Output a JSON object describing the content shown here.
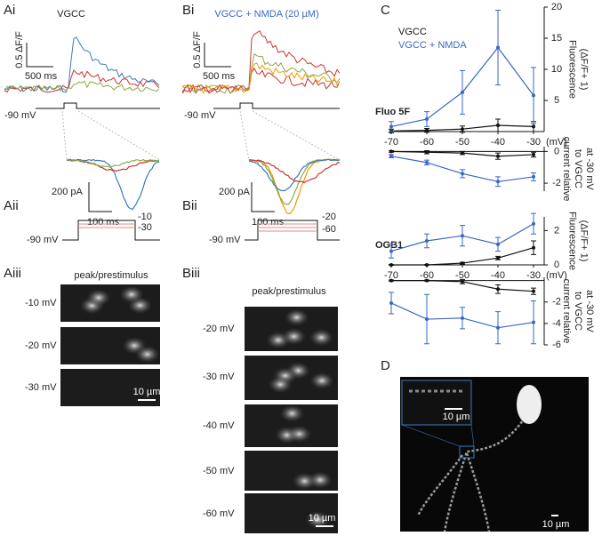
{
  "panel_a": {
    "label_i": "Ai",
    "title": "VGCC",
    "scale_y": "0.5 ΔF/F",
    "scale_x": "500 ms",
    "holding": "-90 mV",
    "label_ii": "Aii",
    "current_scale": "200 pA",
    "time_scale": "100 ms",
    "steps": [
      "-10",
      "-30"
    ],
    "holding_ii": "-90 mV",
    "label_iii": "Aiii",
    "image_title": "peak/prestimulus",
    "image_labels": [
      "-10 mV",
      "-20 mV",
      "-30 mV"
    ],
    "scale_bar": "10 µm"
  },
  "panel_b": {
    "label_i": "Bi",
    "title": "VGCC + NMDA (20 µM)",
    "scale_y": "0.5 ΔF/F",
    "scale_x": "500 ms",
    "holding": "-90 mV",
    "label_ii": "Bii",
    "current_scale": "200 pA",
    "time_scale": "100 ms",
    "steps": [
      "-20",
      "-60"
    ],
    "holding_ii": "-90 mV",
    "label_iii": "Biii",
    "image_title": "peak/prestimulus",
    "image_labels": [
      "-20 mV",
      "-30 mV",
      "-40 mV",
      "-50 mV",
      "-60 mV"
    ],
    "scale_bar": "10 µm"
  },
  "panel_d": {
    "label": "D",
    "inset_scale": "10 µm",
    "scale_bar": "10 µm"
  },
  "chart_data": [
    {
      "type": "line",
      "panel_label": "C",
      "annotation": "Fluo 5F",
      "ylabel": [
        "Fluorescence",
        "(ΔF/F+ 1)"
      ],
      "xlabel": "(mV)",
      "x": [
        -70,
        -60,
        -50,
        -40,
        -30
      ],
      "xlim": [
        -75,
        -25
      ],
      "xticks": [
        -70,
        -60,
        -50,
        -40,
        -30
      ],
      "ylim": [
        0,
        20
      ],
      "yticks": [
        5,
        10,
        15,
        20
      ],
      "series": [
        {
          "name": "VGCC",
          "color": "#111111",
          "values": [
            0.1,
            0.2,
            0.4,
            1,
            0.8
          ],
          "errors": [
            0.3,
            0.3,
            0.5,
            1,
            0.8
          ]
        },
        {
          "name": "VGCC + NMDA",
          "color": "#3a66c4",
          "values": [
            0.8,
            2,
            6.3,
            13.5,
            5.8
          ],
          "errors": [
            0.8,
            1.2,
            3.5,
            6,
            4.5
          ]
        }
      ]
    },
    {
      "type": "line",
      "ylabel": [
        "current relative",
        "to VGCC",
        "at -30 mV"
      ],
      "x": [
        -70,
        -60,
        -50,
        -40,
        -30
      ],
      "xlim": [
        -75,
        -25
      ],
      "ylim": [
        -2.5,
        0.3
      ],
      "yticks": [
        0,
        -2
      ],
      "series": [
        {
          "color": "#111111",
          "values": [
            0,
            -0.05,
            -0.1,
            -0.3,
            -0.2
          ],
          "errors": [
            0.05,
            0.1,
            0.1,
            0.2,
            0.15
          ]
        },
        {
          "color": "#3a66c4",
          "values": [
            -0.3,
            -0.7,
            -1.4,
            -1.9,
            -1.6
          ],
          "errors": [
            0.1,
            0.15,
            0.25,
            0.3,
            0.25
          ]
        }
      ]
    },
    {
      "type": "line",
      "annotation": "OGB1",
      "ylabel": [
        "Fluorescence",
        "(ΔF/F+ 1)"
      ],
      "xlabel": "(mV)",
      "x": [
        -70,
        -60,
        -50,
        -40,
        -30
      ],
      "xlim": [
        -75,
        -25
      ],
      "xticks": [
        -70,
        -60,
        -50,
        -40,
        -30
      ],
      "ylim": [
        0,
        2.8
      ],
      "yticks": [
        0,
        2
      ],
      "series": [
        {
          "color": "#111111",
          "values": [
            0,
            0,
            0.1,
            0.4,
            1
          ],
          "errors": [
            0.02,
            0.02,
            0.05,
            0.1,
            0.4
          ]
        },
        {
          "color": "#3a66c4",
          "values": [
            0.8,
            1.4,
            1.7,
            1.2,
            2.4
          ],
          "errors": [
            0.4,
            0.4,
            0.6,
            0.4,
            0.6
          ]
        }
      ]
    },
    {
      "type": "line",
      "ylabel": [
        "current relative",
        "to VGCC",
        "at -30 mV"
      ],
      "x": [
        -70,
        -60,
        -50,
        -40,
        -30
      ],
      "xlim": [
        -75,
        -25
      ],
      "ylim": [
        -6,
        0.3
      ],
      "yticks": [
        -2,
        -4,
        -6
      ],
      "series": [
        {
          "color": "#111111",
          "values": [
            0,
            0,
            -0.1,
            -0.8,
            -1
          ],
          "errors": [
            0.05,
            0.05,
            0.2,
            0.4,
            0.3
          ]
        },
        {
          "color": "#3a66c4",
          "values": [
            -2.1,
            -3.6,
            -3.5,
            -4.4,
            -3.9
          ],
          "errors": [
            1,
            2.3,
            1,
            1.5,
            2
          ]
        }
      ]
    }
  ]
}
